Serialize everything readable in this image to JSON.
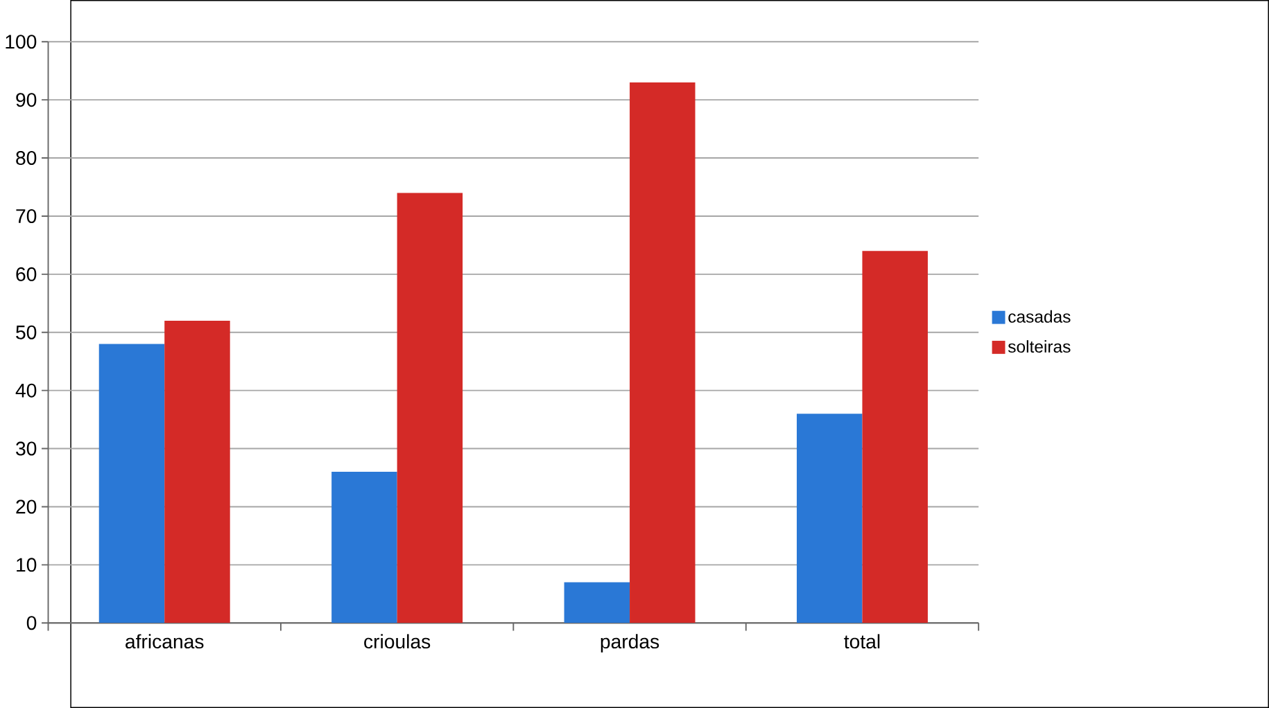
{
  "chart_data": {
    "type": "bar",
    "categories": [
      "africanas",
      "crioulas",
      "pardas",
      "total"
    ],
    "series": [
      {
        "name": "casadas",
        "color": "#2a78d6",
        "values": [
          48,
          26,
          7,
          36
        ]
      },
      {
        "name": "solteiras",
        "color": "#d42a27",
        "values": [
          52,
          74,
          93,
          64
        ]
      }
    ],
    "ylim": [
      0,
      100
    ],
    "yticks": [
      0,
      10,
      20,
      30,
      40,
      50,
      60,
      70,
      80,
      90,
      100
    ],
    "grid": "y",
    "legend": "right"
  }
}
